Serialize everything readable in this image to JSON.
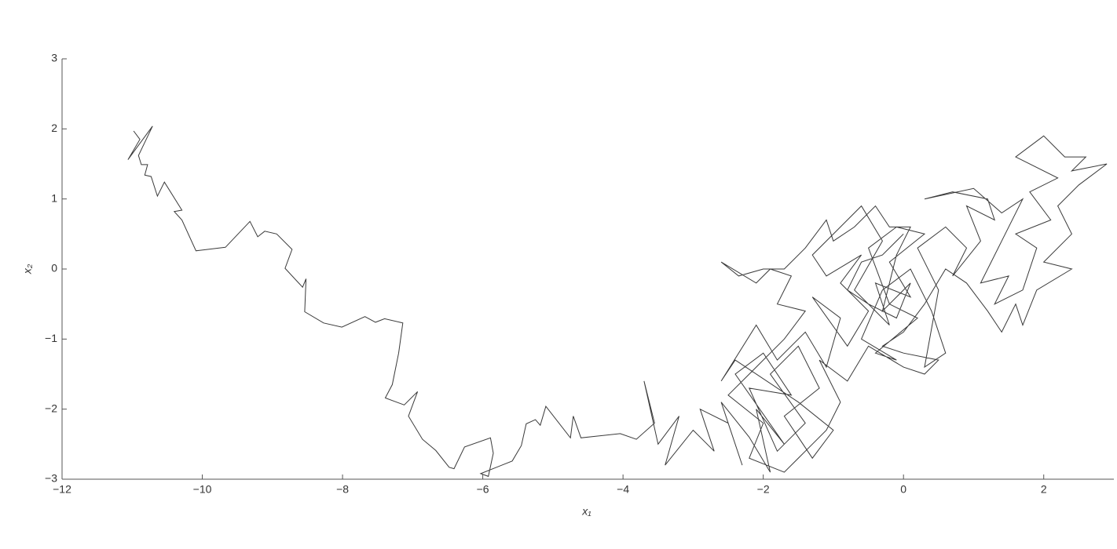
{
  "chart_data": {
    "type": "line",
    "x_label": "x₁",
    "y_label": "x₂",
    "xlim": [
      -12,
      3
    ],
    "ylim": [
      -3,
      3
    ],
    "xticks": [
      {
        "value": -12,
        "label": "−12"
      },
      {
        "value": -10,
        "label": "−10"
      },
      {
        "value": -8,
        "label": "−8"
      },
      {
        "value": -6,
        "label": "−6"
      },
      {
        "value": -4,
        "label": "−4"
      },
      {
        "value": -2,
        "label": "−2"
      },
      0,
      2
    ],
    "yticks": [
      {
        "value": -3,
        "label": "−3"
      },
      {
        "value": -2,
        "label": "−2"
      },
      {
        "value": -1,
        "label": "−1"
      },
      0,
      1,
      2,
      3
    ],
    "color": "#3a3a3a",
    "x": [
      -10.98,
      -10.89,
      -11.06,
      -10.71,
      -10.91,
      -10.87,
      -10.78,
      -10.82,
      -10.73,
      -10.64,
      -10.54,
      -10.29,
      -10.4,
      -10.29,
      -10.09,
      -9.67,
      -9.32,
      -9.21,
      -9.11,
      -8.94,
      -8.72,
      -8.82,
      -8.57,
      -8.52,
      -8.54,
      -8.27,
      -8.01,
      -7.68,
      -7.53,
      -7.4,
      -7.14,
      -7.2,
      -7.29,
      -7.39,
      -7.12,
      -6.93,
      -7.06,
      -6.86,
      -6.67,
      -6.48,
      -6.41,
      -6.26,
      -5.89,
      -5.85,
      -5.92,
      -6.03,
      -5.58,
      -5.45,
      -5.38,
      -5.25,
      -5.18,
      -5.1,
      -4.75,
      -4.71,
      -4.6,
      -4.04,
      -3.81,
      -3.55,
      -3.7,
      -3.5,
      -3.2,
      -3.4,
      -3.0,
      -2.7,
      -2.9,
      -2.5,
      -2.3,
      -2.6,
      -2.2,
      -1.9,
      -2.1,
      -1.7,
      -2.4,
      -2.0,
      -1.6,
      -2.2,
      -1.8,
      -1.4,
      -1.9,
      -1.5,
      -1.2,
      -1.7,
      -1.3,
      -1.0,
      -1.5,
      -2.4,
      -2.6,
      -2.1,
      -1.8,
      -1.4,
      -1.1,
      -0.9,
      -1.3,
      -0.8,
      -0.5,
      -0.9,
      -0.6,
      -1.1,
      -1.3,
      -0.9,
      -0.6,
      -0.3,
      -0.7,
      -0.2,
      -0.4,
      0.1,
      -0.2,
      0.3,
      -0.1,
      -0.5,
      -0.2,
      0.2,
      -0.4,
      -0.1,
      -0.6,
      -0.3,
      0.1,
      0.4,
      0.6,
      0.3,
      0.5,
      0.2,
      0.6,
      0.9,
      0.7,
      1.1,
      0.9,
      1.3,
      1.2,
      0.7,
      0.3,
      1.0,
      1.4,
      1.7,
      1.4,
      1.1,
      1.5,
      1.3,
      1.7,
      1.9,
      1.6,
      2.1,
      1.8,
      2.2,
      1.6,
      2.0,
      2.3,
      2.6,
      2.4,
      2.9,
      2.5,
      2.2,
      2.4,
      2.0,
      2.4,
      1.9,
      1.7,
      1.6,
      1.4,
      1.2,
      0.9,
      0.6,
      0.3,
      0.0,
      -0.3,
      0.0,
      0.5,
      0.3,
      0.0,
      -0.5,
      -0.8,
      -1.2,
      -0.9,
      -1.1,
      -1.4,
      -1.7,
      -2.2,
      -2.0,
      -2.5,
      -2.1,
      -1.7,
      -1.4,
      -1.8,
      -1.6,
      -1.9,
      -2.1,
      -2.6,
      -2.35,
      -2.0,
      -1.7,
      -1.4,
      -1.1,
      -1.0,
      -0.7,
      -0.4,
      -0.2,
      0.1,
      -0.1,
      -0.3,
      0.1,
      -0.1,
      -0.5,
      -0.8,
      -0.6,
      -0.3,
      0.0
    ],
    "values": [
      1.97,
      1.85,
      1.56,
      2.04,
      1.62,
      1.49,
      1.49,
      1.34,
      1.32,
      1.04,
      1.24,
      0.84,
      0.82,
      0.7,
      0.26,
      0.31,
      0.68,
      0.46,
      0.54,
      0.5,
      0.28,
      0.01,
      -0.26,
      -0.14,
      -0.61,
      -0.77,
      -0.83,
      -0.68,
      -0.76,
      -0.71,
      -0.77,
      -1.2,
      -1.65,
      -1.84,
      -1.94,
      -1.75,
      -2.1,
      -2.43,
      -2.59,
      -2.83,
      -2.85,
      -2.54,
      -2.41,
      -2.63,
      -2.96,
      -2.92,
      -2.74,
      -2.52,
      -2.21,
      -2.15,
      -2.23,
      -1.96,
      -2.41,
      -2.1,
      -2.41,
      -2.35,
      -2.43,
      -2.2,
      -1.6,
      -2.5,
      -2.1,
      -2.8,
      -2.3,
      -2.6,
      -2.0,
      -2.2,
      -2.8,
      -1.9,
      -2.4,
      -2.9,
      -2.0,
      -2.5,
      -1.5,
      -1.2,
      -1.8,
      -1.7,
      -2.6,
      -2.2,
      -1.5,
      -1.1,
      -1.7,
      -2.1,
      -2.7,
      -2.3,
      -1.9,
      -1.3,
      -1.6,
      -0.8,
      -1.3,
      -0.9,
      -1.4,
      -0.7,
      -0.4,
      -1.1,
      -0.6,
      -0.2,
      0.2,
      -0.1,
      0.2,
      0.6,
      0.9,
      0.4,
      -0.3,
      -0.8,
      -0.2,
      -0.4,
      0.1,
      0.5,
      0.6,
      0.3,
      -0.5,
      -0.7,
      -1.2,
      -1.3,
      -1.0,
      -0.3,
      0.0,
      -0.6,
      -1.2,
      -1.4,
      -0.3,
      0.3,
      0.6,
      0.3,
      -0.1,
      0.4,
      0.9,
      0.7,
      1.0,
      1.1,
      1.0,
      1.15,
      0.8,
      1.0,
      0.4,
      -0.2,
      -0.1,
      -0.5,
      -0.3,
      0.3,
      0.5,
      0.7,
      1.1,
      1.3,
      1.6,
      1.9,
      1.6,
      1.6,
      1.4,
      1.5,
      1.2,
      0.9,
      0.5,
      0.1,
      0.0,
      -0.3,
      -0.8,
      -0.5,
      -0.9,
      -0.6,
      -0.2,
      0.0,
      -0.5,
      -0.9,
      -1.1,
      -1.2,
      -1.3,
      -1.5,
      -1.4,
      -1.1,
      -1.6,
      -1.3,
      -1.9,
      -2.3,
      -2.6,
      -2.9,
      -2.7,
      -2.2,
      -1.8,
      -1.4,
      -1.0,
      -0.6,
      -0.5,
      -0.1,
      0.0,
      -0.2,
      0.1,
      -0.1,
      0.0,
      0.0,
      0.3,
      0.7,
      0.4,
      0.6,
      0.9,
      0.6,
      0.6,
      0.2,
      -0.6,
      -0.2,
      -0.7,
      -0.5,
      -0.3,
      0.1,
      0.2,
      0.5
    ]
  }
}
